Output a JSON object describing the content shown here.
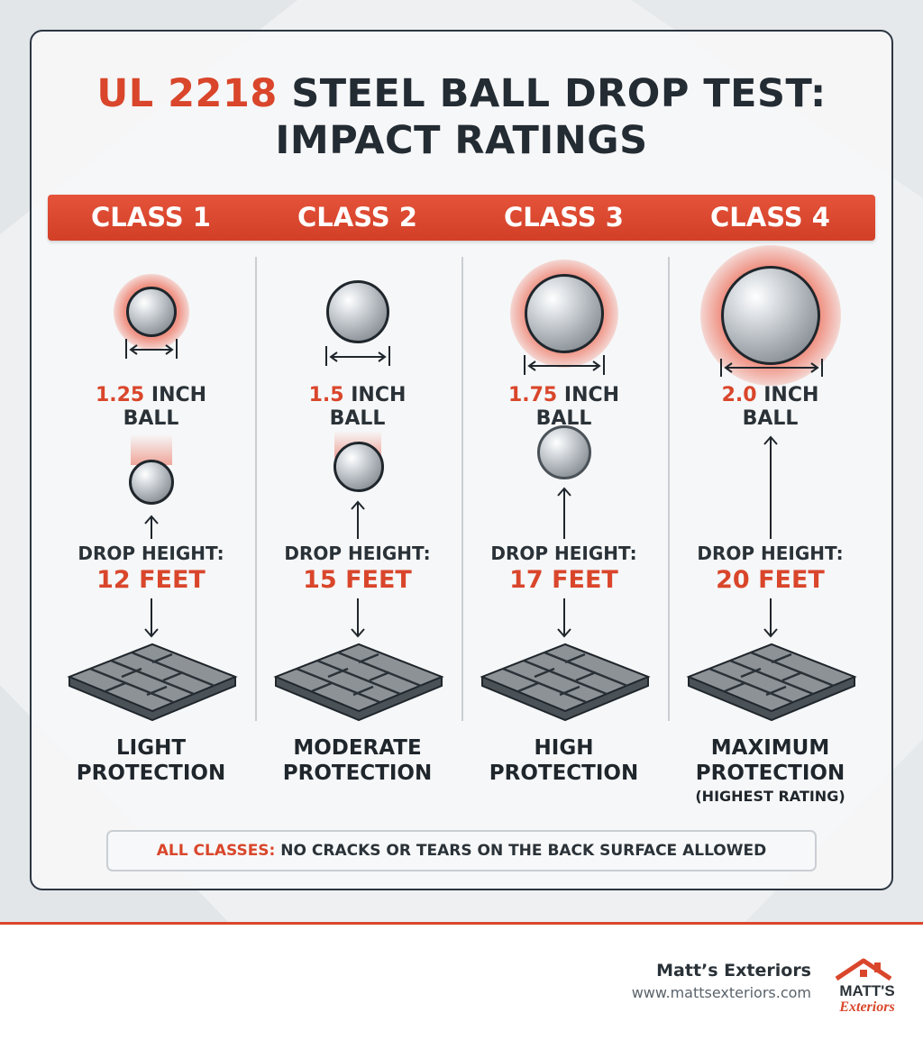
{
  "title": {
    "accent": "UL 2218",
    "rest": " STEEL BALL DROP TEST:",
    "line2": "IMPACT RATINGS"
  },
  "classes": [
    {
      "label": "CLASS 1",
      "ball_size": "1.25",
      "ball_unit": "INCH",
      "ball_word": "BALL",
      "drop_label": "DROP HEIGHT:",
      "drop_value": "12 FEET",
      "protection_line1": "LIGHT",
      "protection_line2": "PROTECTION",
      "note": ""
    },
    {
      "label": "CLASS 2",
      "ball_size": "1.5",
      "ball_unit": "INCH",
      "ball_word": "BALL",
      "drop_label": "DROP HEIGHT:",
      "drop_value": "15 FEET",
      "protection_line1": "MODERATE",
      "protection_line2": "PROTECTION",
      "note": ""
    },
    {
      "label": "CLASS 3",
      "ball_size": "1.75",
      "ball_unit": "INCH",
      "ball_word": "BALL",
      "drop_label": "DROP HEIGHT:",
      "drop_value": "17 FEET",
      "protection_line1": "HIGH",
      "protection_line2": "PROTECTION",
      "note": ""
    },
    {
      "label": "CLASS 4",
      "ball_size": "2.0",
      "ball_unit": "INCH",
      "ball_word": "BALL",
      "drop_label": "DROP HEIGHT:",
      "drop_value": "20 FEET",
      "protection_line1": "MAXIMUM",
      "protection_line2": "PROTECTION",
      "note": "(HIGHEST RATING)"
    }
  ],
  "footer_note": {
    "accent": "ALL CLASSES:",
    "text": " NO CRACKS OR TEARS ON THE BACK SURFACE ALLOWED"
  },
  "brand": {
    "company": "Matt’s Exteriors",
    "website": "www.mattsexteriors.com",
    "logo_top": "MATT'S",
    "logo_bottom": "Exteriors"
  },
  "colors": {
    "accent": "#d9462b",
    "dark": "#232b33",
    "shingle": "#8d9297"
  }
}
